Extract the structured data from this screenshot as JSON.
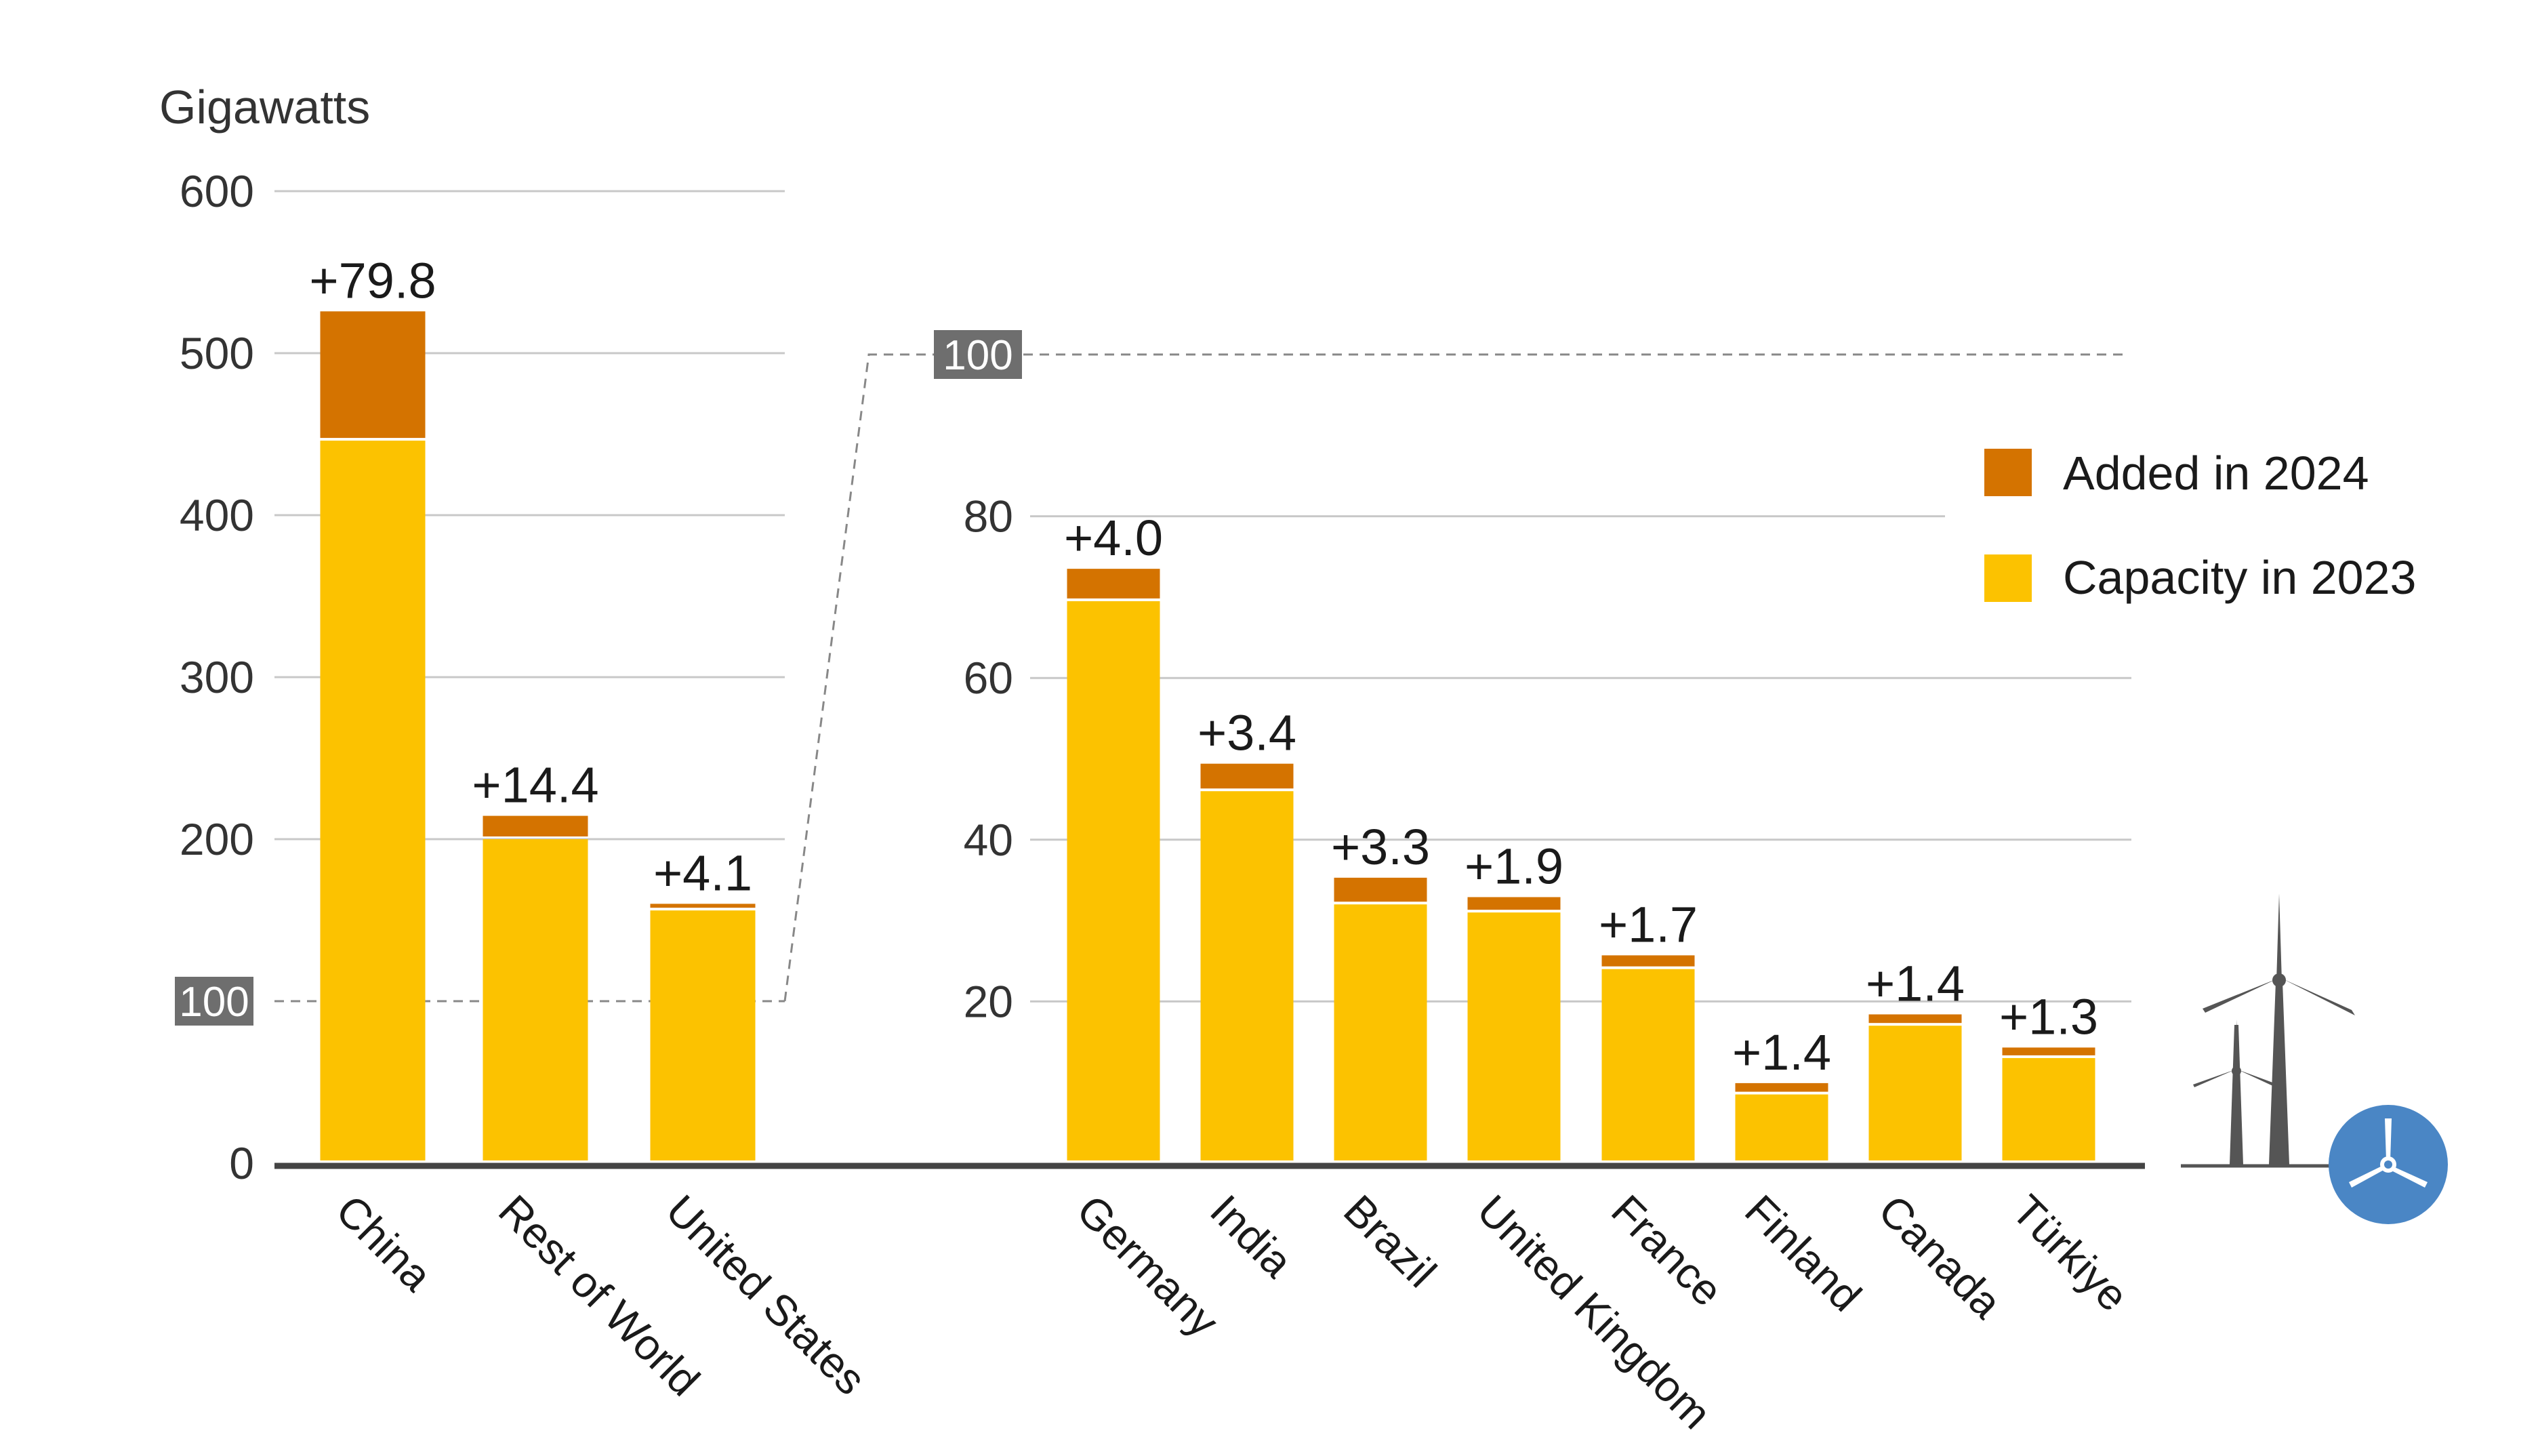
{
  "chart_data": [
    {
      "type": "bar",
      "stacked": true,
      "ylabel": "Gigawatts",
      "ylim": [
        0,
        600
      ],
      "yticks": [
        0,
        100,
        200,
        300,
        400,
        500,
        600
      ],
      "highlight_tick": "100",
      "categories": [
        "China",
        "Rest of World",
        "United States"
      ],
      "series": [
        {
          "name": "Capacity in 2023",
          "values": [
            446,
            200,
            156
          ]
        },
        {
          "name": "Added in 2024",
          "values": [
            79.8,
            14.4,
            4.1
          ]
        }
      ],
      "data_labels": [
        "+79.8",
        "+14.4",
        "+4.1"
      ]
    },
    {
      "type": "bar",
      "stacked": true,
      "ylim": [
        0,
        100
      ],
      "yticks": [
        20,
        40,
        60,
        80,
        100
      ],
      "highlight_tick": "100",
      "categories": [
        "Germany",
        "India",
        "Brazil",
        "United Kingdom",
        "France",
        "Finland",
        "Canada",
        "Türkiye"
      ],
      "series": [
        {
          "name": "Capacity in 2023",
          "values": [
            69.5,
            46,
            32,
            31,
            24,
            8.5,
            17,
            13
          ]
        },
        {
          "name": "Added in 2024",
          "values": [
            4.0,
            3.4,
            3.3,
            1.9,
            1.7,
            1.4,
            1.4,
            1.3
          ]
        }
      ],
      "data_labels": [
        "+4.0",
        "+3.4",
        "+3.3",
        "+1.9",
        "+1.7",
        "+1.4",
        "+1.4",
        "+1.3"
      ]
    }
  ],
  "legend": {
    "position": "right",
    "items": [
      {
        "label": "Added in 2024",
        "color": "#D47300"
      },
      {
        "label": "Capacity in 2023",
        "color": "#FCC200"
      }
    ]
  },
  "colors": {
    "capacity_2023": "#FCC200",
    "added_2024": "#D47300",
    "axis": "#444444",
    "grid": "#c8c8c8",
    "tick_box": "#6e6e6e",
    "turbine": "#555555",
    "badge": "#4a86c5"
  },
  "icons": [
    "wind-turbine-icon",
    "turbine-badge-icon"
  ]
}
